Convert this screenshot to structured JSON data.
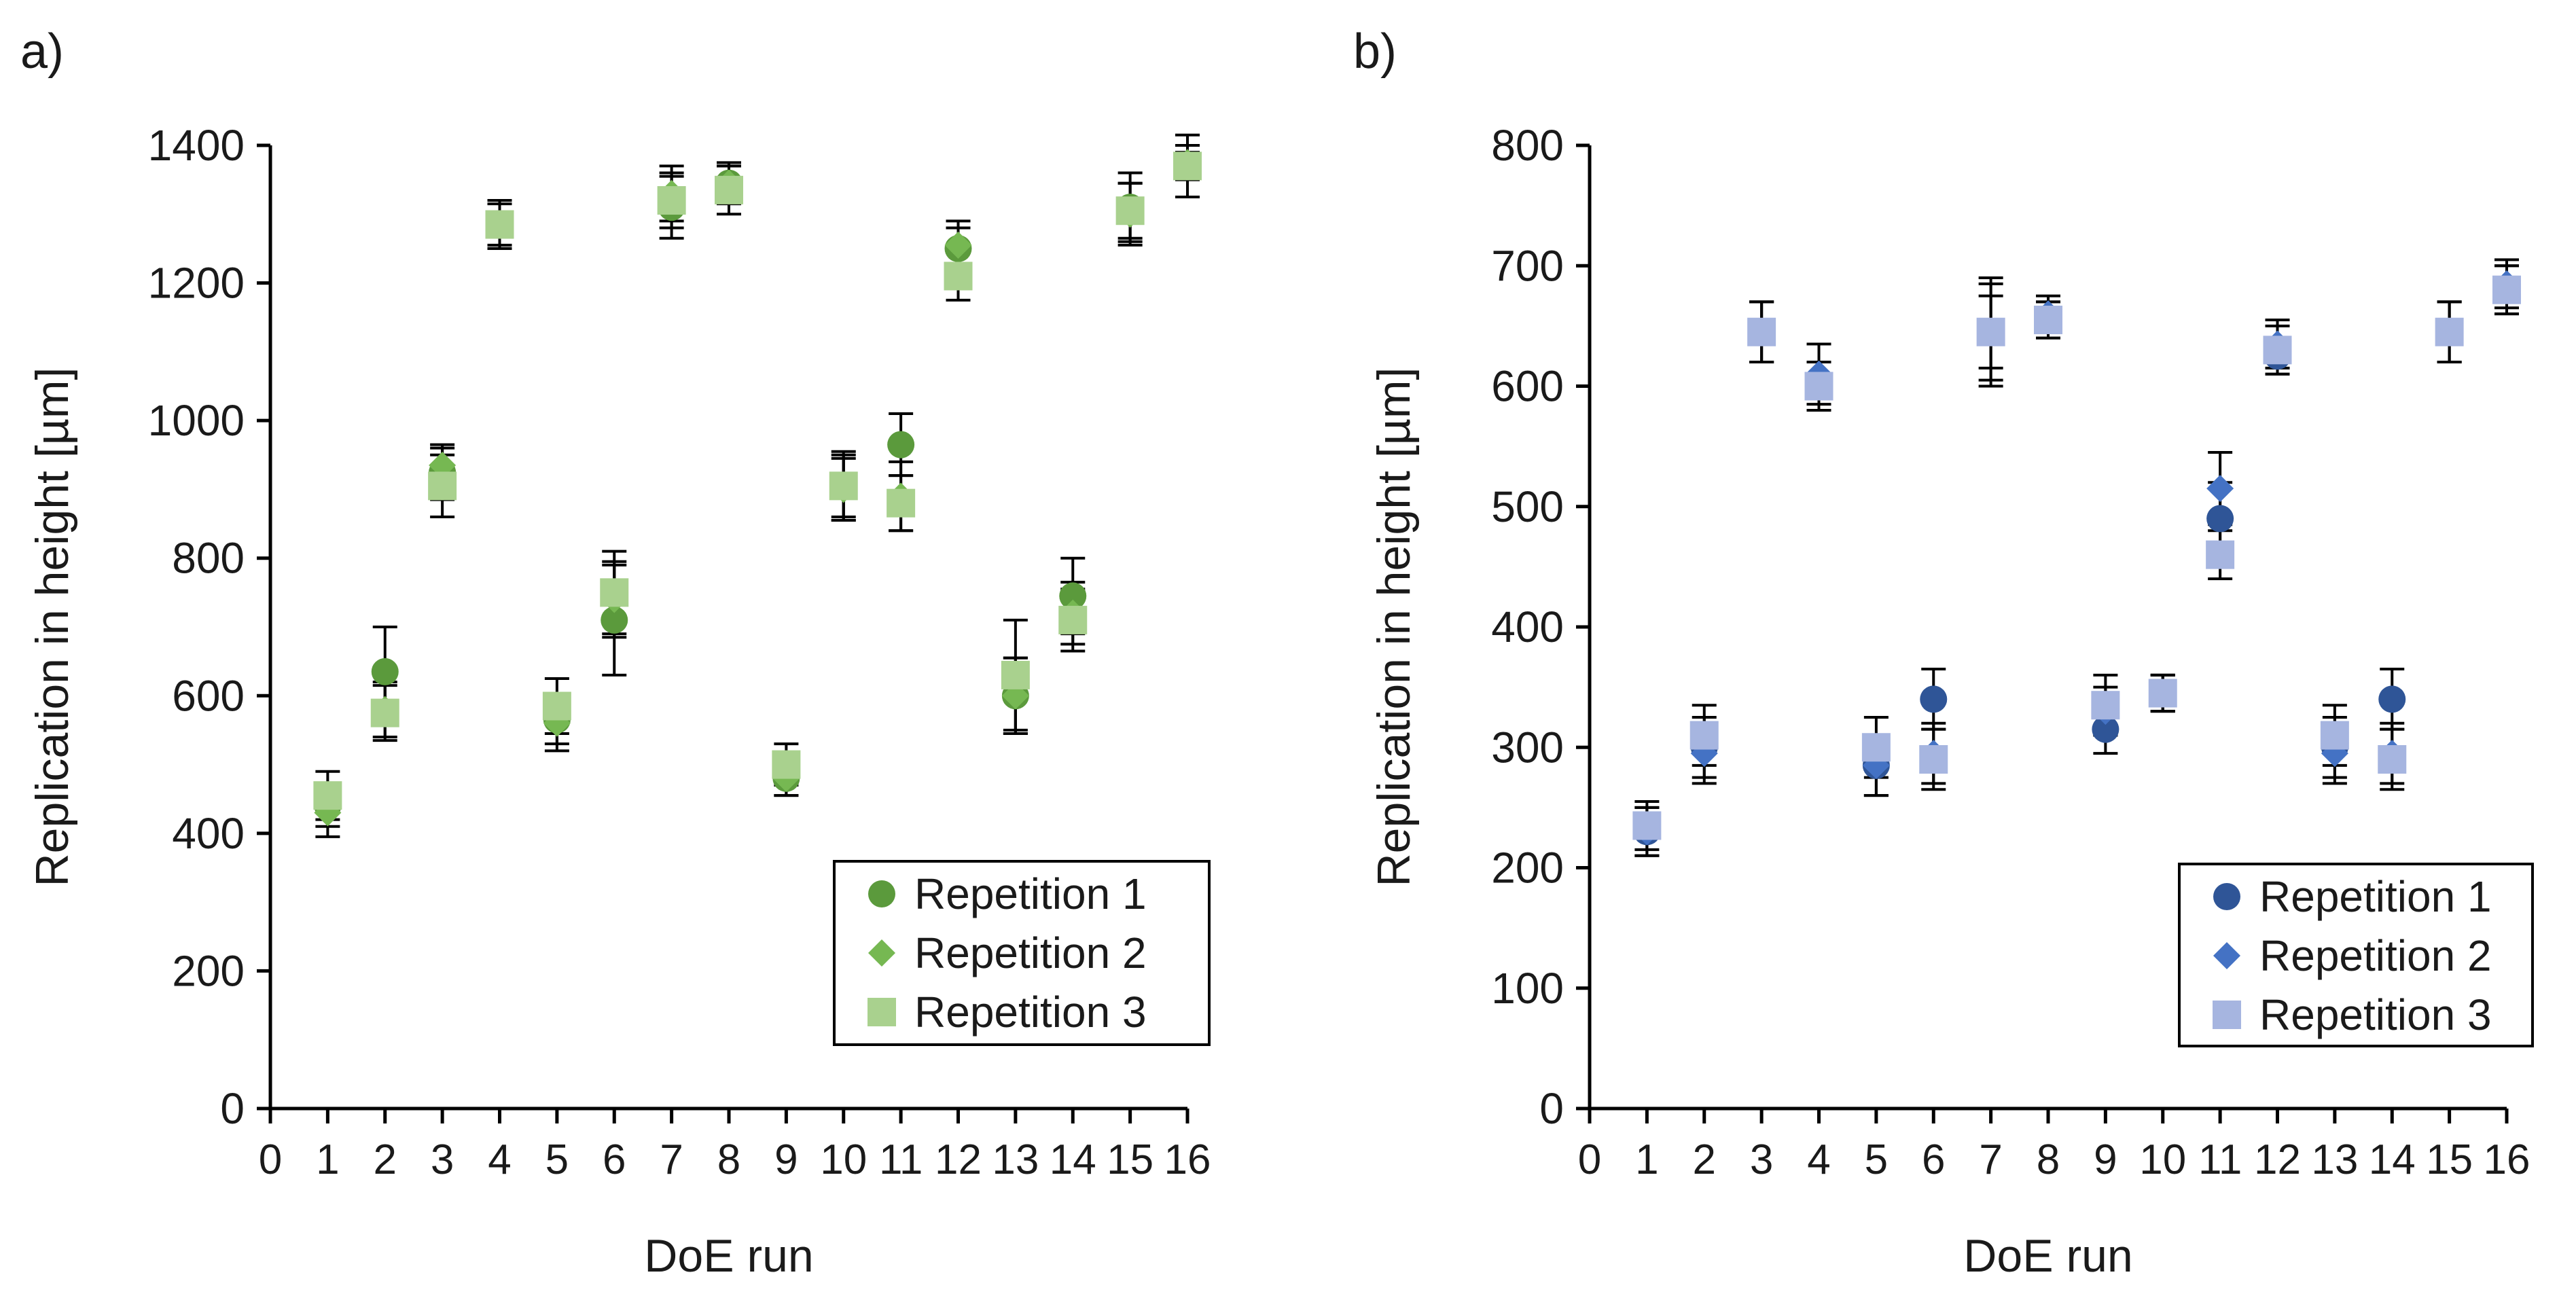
{
  "colors": {
    "green_rep1": "#5b9a3c",
    "green_rep2": "#76b852",
    "green_rep3": "#a9d18e",
    "blue_rep1": "#2f5597",
    "blue_rep2": "#4472c4",
    "blue_rep3": "#a6b5e0",
    "errorbar": "#000000",
    "axis": "#000000"
  },
  "chart_data": [
    {
      "type": "scatter",
      "panel_label": "a)",
      "title": "",
      "xlabel": "DoE run",
      "ylabel": "Replication in height [µm]",
      "xlim": [
        0,
        16
      ],
      "ylim": [
        0,
        1400
      ],
      "xticks": [
        "0",
        "1",
        "2",
        "3",
        "4",
        "5",
        "6",
        "7",
        "8",
        "9",
        "10",
        "11",
        "12",
        "13",
        "14",
        "15",
        "16"
      ],
      "yticks": [
        "0",
        "200",
        "400",
        "600",
        "800",
        "1000",
        "1200",
        "1400"
      ],
      "grid": false,
      "legend_position": "bottom-right",
      "x": [
        1,
        2,
        3,
        4,
        5,
        6,
        7,
        8,
        9,
        10,
        11,
        12,
        13,
        14,
        15,
        16
      ],
      "series": [
        {
          "name": "Repetition 1",
          "marker": "circle",
          "color": "#5b9a3c",
          "values": [
            440,
            635,
            925,
            1285,
            565,
            710,
            1310,
            1345,
            480,
            905,
            965,
            1250,
            600,
            745,
            1310,
            1370
          ],
          "errors": [
            30,
            65,
            40,
            35,
            35,
            80,
            45,
            25,
            25,
            50,
            45,
            30,
            55,
            55,
            50,
            20
          ]
        },
        {
          "name": "Repetition 2",
          "marker": "diamond",
          "color": "#76b852",
          "values": [
            430,
            580,
            935,
            1285,
            560,
            740,
            1330,
            1345,
            480,
            900,
            890,
            1255,
            600,
            720,
            1300,
            1375
          ],
          "errors": [
            35,
            40,
            25,
            30,
            40,
            55,
            40,
            30,
            25,
            45,
            50,
            35,
            55,
            45,
            45,
            25
          ]
        },
        {
          "name": "Repetition 3",
          "marker": "square",
          "color": "#a9d18e",
          "values": [
            455,
            575,
            905,
            1285,
            585,
            750,
            1320,
            1335,
            500,
            905,
            880,
            1210,
            630,
            710,
            1305,
            1370
          ],
          "errors": [
            35,
            40,
            45,
            35,
            40,
            60,
            40,
            35,
            30,
            45,
            40,
            35,
            80,
            45,
            40,
            45
          ]
        }
      ]
    },
    {
      "type": "scatter",
      "panel_label": "b)",
      "title": "",
      "xlabel": "DoE run",
      "ylabel": "Replication in height [µm]",
      "xlim": [
        0,
        16
      ],
      "ylim": [
        0,
        800
      ],
      "xticks": [
        "0",
        "1",
        "2",
        "3",
        "4",
        "5",
        "6",
        "7",
        "8",
        "9",
        "10",
        "11",
        "12",
        "13",
        "14",
        "15",
        "16"
      ],
      "yticks": [
        "0",
        "100",
        "200",
        "300",
        "400",
        "500",
        "600",
        "700",
        "800"
      ],
      "grid": false,
      "legend_position": "bottom-right",
      "x": [
        1,
        2,
        3,
        4,
        5,
        6,
        7,
        8,
        9,
        10,
        11,
        12,
        13,
        14,
        15,
        16
      ],
      "series": [
        {
          "name": "Repetition 1",
          "marker": "circle",
          "color": "#2f5597",
          "values": [
            230,
            300,
            645,
            600,
            285,
            340,
            645,
            655,
            315,
            345,
            490,
            625,
            300,
            340,
            645,
            680
          ],
          "errors": [
            20,
            25,
            25,
            20,
            25,
            25,
            30,
            15,
            20,
            15,
            30,
            15,
            25,
            25,
            25,
            20
          ]
        },
        {
          "name": "Repetition 2",
          "marker": "diamond",
          "color": "#4472c4",
          "values": [
            230,
            295,
            645,
            610,
            285,
            295,
            645,
            660,
            330,
            345,
            515,
            635,
            295,
            295,
            645,
            685
          ],
          "errors": [
            20,
            25,
            25,
            25,
            25,
            25,
            40,
            15,
            20,
            15,
            30,
            20,
            25,
            25,
            25,
            20
          ]
        },
        {
          "name": "Repetition 3",
          "marker": "square",
          "color": "#a6b5e0",
          "values": [
            235,
            310,
            645,
            600,
            300,
            290,
            645,
            655,
            335,
            345,
            460,
            630,
            310,
            290,
            645,
            680
          ],
          "errors": [
            20,
            25,
            25,
            20,
            25,
            25,
            45,
            15,
            25,
            15,
            20,
            20,
            25,
            25,
            25,
            20
          ]
        }
      ]
    }
  ]
}
